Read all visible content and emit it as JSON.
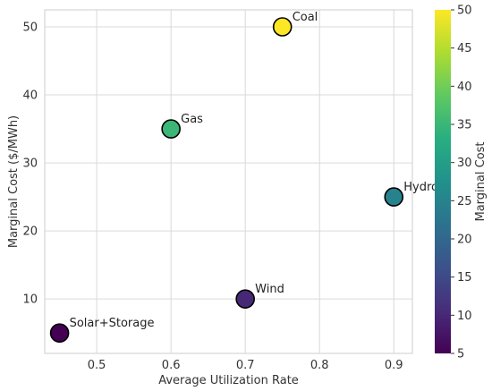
{
  "chart_data": {
    "type": "scatter",
    "title": "",
    "xlabel": "Average Utilization Rate",
    "ylabel": "Marginal Cost ($/MWh)",
    "xlim": [
      0.43,
      0.925
    ],
    "ylim": [
      2,
      52.5
    ],
    "xticks": [
      0.5,
      0.6,
      0.7,
      0.8,
      0.9
    ],
    "yticks": [
      10,
      20,
      30,
      40,
      50
    ],
    "grid": true,
    "points": [
      {
        "label": "Solar+Storage",
        "x": 0.45,
        "y": 5
      },
      {
        "label": "Wind",
        "x": 0.7,
        "y": 10
      },
      {
        "label": "Gas",
        "x": 0.6,
        "y": 35
      },
      {
        "label": "Coal",
        "x": 0.75,
        "y": 50
      },
      {
        "label": "Hydro",
        "x": 0.9,
        "y": 25
      }
    ],
    "colorbar": {
      "label": "Marginal Cost",
      "colormap": "viridis",
      "range": [
        5,
        50
      ],
      "ticks": [
        5,
        10,
        15,
        20,
        25,
        30,
        35,
        40,
        45,
        50
      ]
    },
    "colors": {
      "grid": "#d9d9d9",
      "marker_edge": "#000000"
    }
  }
}
